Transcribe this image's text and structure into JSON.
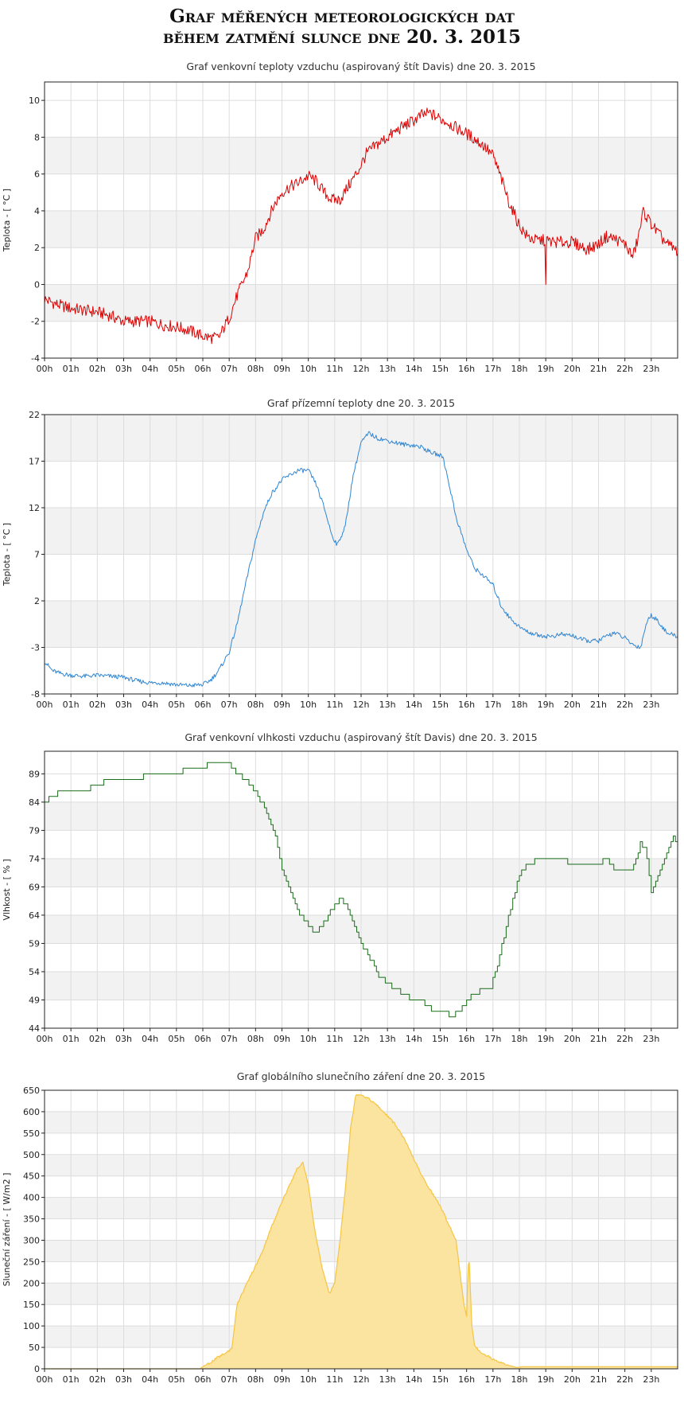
{
  "page_title": {
    "line1": "Graf měřených meteorologických dat",
    "line2": "během zatmění slunce dne 20. 3. 2015"
  },
  "x_ticks": [
    "00h",
    "01h",
    "02h",
    "03h",
    "04h",
    "05h",
    "06h",
    "07h",
    "08h",
    "09h",
    "10h",
    "11h",
    "12h",
    "13h",
    "14h",
    "15h",
    "16h",
    "17h",
    "18h",
    "19h",
    "20h",
    "21h",
    "22h",
    "23h"
  ],
  "colors": {
    "band": "#f2f2f2",
    "grid": "#dddddd",
    "frame": "#222222"
  },
  "chart_data": [
    {
      "id": "air-temp",
      "type": "line",
      "title": "Graf venkovní teploty vzduchu (aspirovaný štít Davis) dne 20. 3. 2015",
      "ylabel": "Teplota - [ °C ]",
      "ylim": [
        -4,
        11
      ],
      "yticks": [
        -4,
        -2,
        0,
        2,
        4,
        6,
        8,
        10
      ],
      "xlim": [
        0,
        24
      ],
      "color": "#dd0000",
      "fill": false,
      "x": [
        0,
        0.5,
        1,
        1.5,
        2,
        2.5,
        3,
        3.5,
        4,
        4.5,
        5,
        5.5,
        6,
        6.3,
        6.6,
        7,
        7.3,
        7.7,
        8,
        8.3,
        8.7,
        9,
        9.3,
        9.6,
        10,
        10.3,
        10.6,
        10.9,
        11.2,
        11.5,
        11.9,
        12.2,
        12.6,
        13,
        13.3,
        13.6,
        14,
        14.3,
        14.6,
        15,
        15.3,
        15.6,
        16,
        16.3,
        16.6,
        17,
        17.3,
        17.6,
        18,
        18.3,
        18.6,
        19,
        19.3,
        19.6,
        20,
        20.3,
        20.6,
        21,
        21.3,
        21.6,
        22,
        22.3,
        22.5,
        22.7,
        22.9,
        23.1,
        23.3,
        23.6,
        24
      ],
      "y": [
        -0.8,
        -1.1,
        -1.3,
        -1.4,
        -1.5,
        -1.7,
        -2.0,
        -2.0,
        -2.0,
        -2.2,
        -2.3,
        -2.5,
        -2.8,
        -2.9,
        -2.9,
        -1.8,
        -0.6,
        0.7,
        2.5,
        3.0,
        4.3,
        5.0,
        5.3,
        5.5,
        5.9,
        5.6,
        5.0,
        4.6,
        4.6,
        5.3,
        6.2,
        7.1,
        7.6,
        8.0,
        8.3,
        8.6,
        8.9,
        9.2,
        9.3,
        9.0,
        8.8,
        8.5,
        8.2,
        7.9,
        7.6,
        7.0,
        5.8,
        4.5,
        3.2,
        2.6,
        2.4,
        2.4,
        2.3,
        2.3,
        2.3,
        2.1,
        1.9,
        2.2,
        2.6,
        2.5,
        2.2,
        1.5,
        2.5,
        4.0,
        3.5,
        3.1,
        2.7,
        2.2,
        1.8
      ]
    },
    {
      "id": "ground-temp",
      "type": "line",
      "title": "Graf přízemní teploty dne 20. 3. 2015",
      "ylabel": "Teplota - [ °C ]",
      "ylim": [
        -8,
        22
      ],
      "yticks": [
        -8,
        -3,
        2,
        7,
        12,
        17,
        22
      ],
      "xlim": [
        0,
        24
      ],
      "color": "#2f86d4",
      "fill": false,
      "x": [
        0,
        0.3,
        0.6,
        1,
        1.5,
        2,
        2.5,
        3,
        3.5,
        4,
        4.5,
        5,
        5.5,
        6,
        6.3,
        6.6,
        7,
        7.3,
        7.6,
        8,
        8.3,
        8.6,
        9,
        9.3,
        9.6,
        10,
        10.3,
        10.6,
        10.9,
        11.1,
        11.4,
        11.7,
        12,
        12.3,
        12.6,
        13,
        13.3,
        13.6,
        14,
        14.3,
        14.6,
        14.9,
        15.1,
        15.3,
        15.6,
        16,
        16.3,
        16.6,
        17,
        17.3,
        17.6,
        18,
        18.3,
        18.6,
        19,
        19.3,
        19.6,
        20,
        20.3,
        20.6,
        21,
        21.3,
        21.6,
        22,
        22.3,
        22.6,
        22.8,
        23,
        23.3,
        23.6,
        24
      ],
      "y": [
        -4.5,
        -5.5,
        -5.8,
        -6.0,
        -6.1,
        -6.0,
        -6.1,
        -6.2,
        -6.6,
        -6.8,
        -6.8,
        -7.0,
        -7.1,
        -7.0,
        -6.5,
        -5.5,
        -3.5,
        -0.5,
        3.5,
        8.5,
        11.5,
        13.5,
        15.0,
        15.5,
        16.0,
        16.0,
        14.5,
        12.0,
        9.0,
        8.0,
        10.0,
        15.5,
        19.0,
        20.0,
        19.5,
        19.2,
        19.0,
        18.8,
        18.7,
        18.5,
        18.0,
        17.7,
        17.5,
        15.0,
        11.0,
        7.5,
        5.5,
        4.8,
        3.7,
        1.5,
        0.3,
        -0.8,
        -1.3,
        -1.6,
        -1.8,
        -1.8,
        -1.6,
        -1.7,
        -2.1,
        -2.3,
        -2.3,
        -1.8,
        -1.4,
        -2.0,
        -2.7,
        -3.0,
        -0.5,
        0.5,
        -0.3,
        -1.5,
        -1.8
      ]
    },
    {
      "id": "humidity",
      "type": "line",
      "title": "Graf venkovní vlhkosti vzduchu (aspirovaný štít Davis) dne 20. 3. 2015",
      "ylabel": "Vlhkost - [ % ]",
      "ylim": [
        44,
        93
      ],
      "yticks": [
        44,
        49,
        54,
        59,
        64,
        69,
        74,
        79,
        84,
        89
      ],
      "xlim": [
        0,
        24
      ],
      "color": "#1a6b1a",
      "fill": false,
      "step": true,
      "x": [
        0,
        0.3,
        0.6,
        1,
        1.5,
        2,
        2.5,
        3,
        3.5,
        4,
        4.5,
        5,
        5.5,
        6,
        6.3,
        6.6,
        7,
        7.3,
        7.6,
        8,
        8.3,
        8.6,
        8.8,
        9,
        9.3,
        9.6,
        10,
        10.3,
        10.6,
        10.9,
        11.2,
        11.5,
        11.8,
        12.1,
        12.4,
        12.7,
        13,
        13.3,
        13.6,
        13.9,
        14.2,
        14.5,
        14.8,
        15.1,
        15.4,
        15.7,
        16,
        16.3,
        16.6,
        16.9,
        17.2,
        17.5,
        17.8,
        18.1,
        18.4,
        18.7,
        19,
        19.3,
        19.6,
        20,
        20.3,
        20.6,
        21,
        21.3,
        21.6,
        22,
        22.3,
        22.6,
        22.8,
        23,
        23.3,
        23.6,
        23.8,
        24
      ],
      "y": [
        84,
        85,
        86,
        86,
        86,
        87,
        88,
        88,
        88,
        89,
        89,
        89,
        90,
        90,
        91,
        91,
        91,
        89,
        88,
        86,
        83,
        80,
        77,
        72,
        68,
        65,
        62,
        61,
        63,
        65,
        67,
        65,
        61,
        58,
        56,
        53,
        52,
        51,
        50,
        49,
        49,
        48,
        47,
        47,
        46,
        47,
        49,
        50,
        51,
        51,
        56,
        62,
        68,
        72,
        73,
        74,
        74,
        74,
        74,
        73,
        73,
        73,
        73,
        74,
        72,
        72,
        72,
        77,
        75,
        68,
        72,
        75,
        78,
        77
      ]
    },
    {
      "id": "solar",
      "type": "area",
      "title": "Graf globálního slunečního záření dne 20. 3. 2015",
      "ylabel": "Sluneční záření - [ W/m2 ]",
      "ylim": [
        0,
        650
      ],
      "yticks": [
        0,
        50,
        100,
        150,
        200,
        250,
        300,
        350,
        400,
        450,
        500,
        550,
        600,
        650
      ],
      "xlim": [
        0,
        24
      ],
      "color": "#f5c542",
      "fill": true,
      "x": [
        0,
        5.9,
        6,
        6.3,
        6.6,
        6.9,
        7.1,
        7.3,
        7.6,
        8,
        8.3,
        8.6,
        9,
        9.3,
        9.6,
        9.8,
        10,
        10.2,
        10.5,
        10.8,
        11,
        11.2,
        11.4,
        11.6,
        11.8,
        12,
        12.3,
        12.6,
        13,
        13.3,
        13.6,
        14,
        14.3,
        14.6,
        15,
        15.3,
        15.6,
        15.8,
        15.9,
        16,
        16.05,
        16.1,
        16.2,
        16.3,
        16.5,
        16.8,
        17,
        17.3,
        17.6,
        17.9,
        18.1,
        19,
        20,
        21,
        22,
        23,
        24
      ],
      "y": [
        0,
        0,
        5,
        15,
        28,
        38,
        48,
        150,
        190,
        240,
        280,
        330,
        390,
        430,
        470,
        480,
        430,
        340,
        240,
        175,
        200,
        300,
        420,
        560,
        640,
        640,
        630,
        615,
        590,
        570,
        540,
        490,
        450,
        420,
        380,
        340,
        300,
        200,
        150,
        120,
        240,
        250,
        100,
        55,
        40,
        30,
        22,
        15,
        8,
        3,
        5,
        5,
        5,
        5,
        5,
        5,
        5
      ]
    }
  ]
}
